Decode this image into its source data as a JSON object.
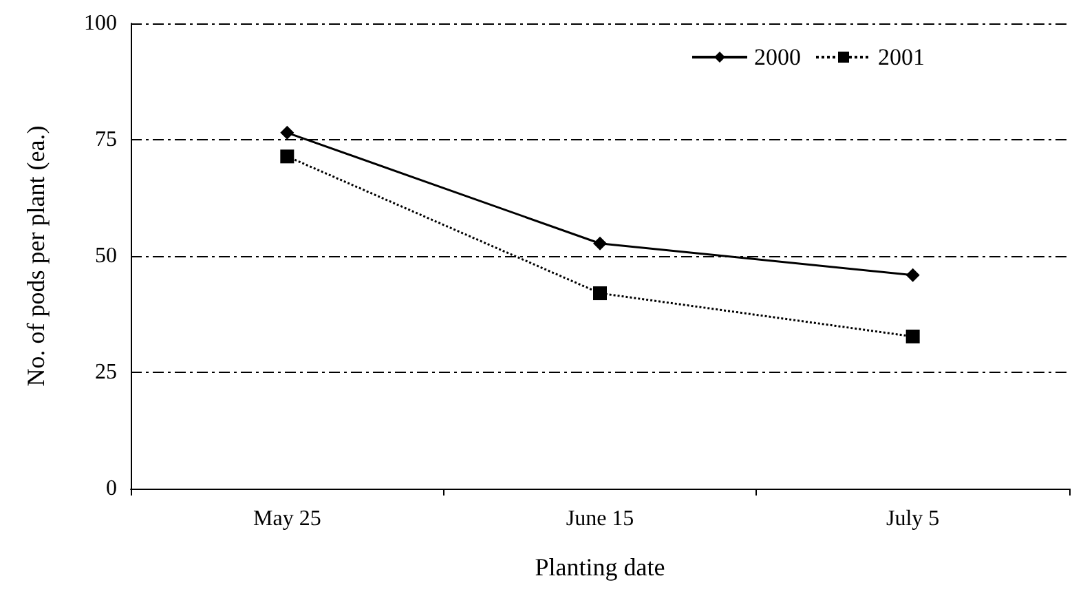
{
  "chart_data": {
    "type": "line",
    "xlabel": "Planting date",
    "ylabel": "No. of pods per plant (ea.)",
    "categories": [
      "May 25",
      "June 15",
      "July 5"
    ],
    "series": [
      {
        "name": "2000",
        "color": "#000000",
        "values": [
          76.5,
          52.7,
          45.9
        ],
        "marker": "diamond",
        "line_style": "solid"
      },
      {
        "name": "2001",
        "color": "#000000",
        "values": [
          71.4,
          42,
          32.7
        ],
        "marker": "square",
        "line_style": "dotted"
      }
    ],
    "ylim": [
      0,
      100
    ],
    "yticks": [
      0,
      25,
      50,
      75,
      100
    ],
    "grid": "y",
    "legend": "top right"
  }
}
